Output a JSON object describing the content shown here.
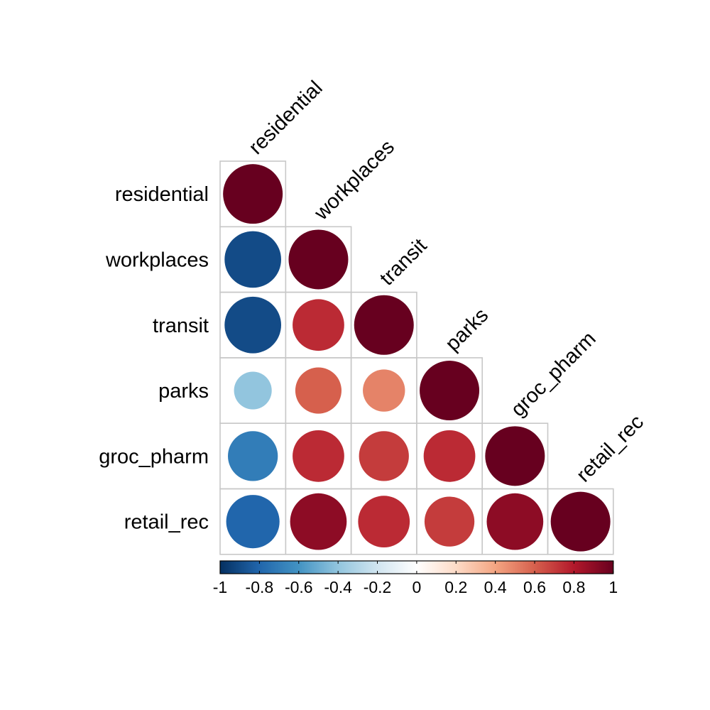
{
  "chart_data": {
    "type": "heatmap",
    "style": "correlation-matrix-circles",
    "layout": "lower-triangle",
    "title": "",
    "variables": [
      "residential",
      "workplaces",
      "transit",
      "parks",
      "groc_pharm",
      "retail_rec"
    ],
    "matrix": [
      [
        1.0,
        -0.9,
        -0.9,
        -0.4,
        -0.7,
        -0.8
      ],
      [
        -0.9,
        1.0,
        0.75,
        0.6,
        0.75,
        0.9
      ],
      [
        -0.9,
        0.75,
        1.0,
        0.5,
        0.7,
        0.75
      ],
      [
        -0.4,
        0.6,
        0.5,
        1.0,
        0.75,
        0.7
      ],
      [
        -0.7,
        0.75,
        0.7,
        0.75,
        1.0,
        0.9
      ],
      [
        -0.8,
        0.9,
        0.75,
        0.7,
        0.9,
        1.0
      ]
    ],
    "colorbar": {
      "range": [
        -1,
        1
      ],
      "ticks": [
        "-1",
        "-0.8",
        "-0.6",
        "-0.4",
        "-0.2",
        "0",
        "0.2",
        "0.4",
        "0.6",
        "0.8",
        "1"
      ],
      "placement": "bottom",
      "colors": [
        "#053061",
        "#2166AC",
        "#4393C3",
        "#92C5DE",
        "#D1E5F0",
        "#FFFFFF",
        "#FDDBC7",
        "#F4A582",
        "#D6604D",
        "#B2182B",
        "#67001F"
      ]
    },
    "grid": true
  }
}
